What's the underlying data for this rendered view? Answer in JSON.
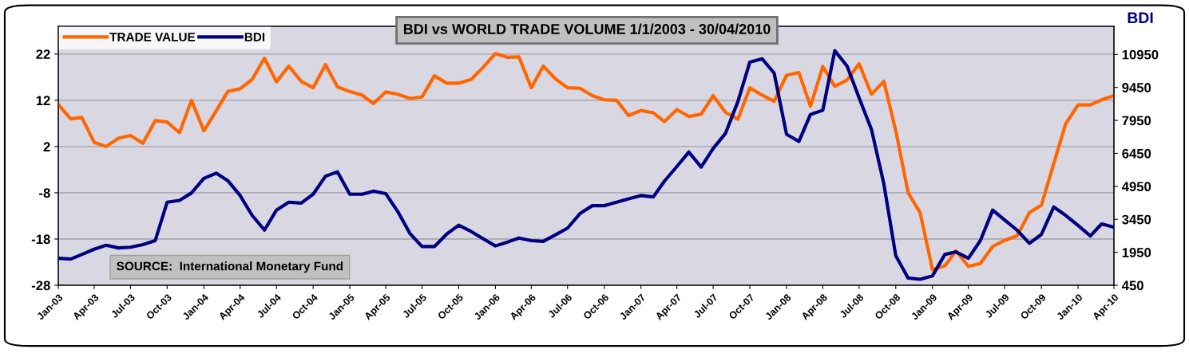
{
  "chart_data": {
    "type": "line",
    "title": "BDI vs WORLD TRADE VOLUME 1/1/2003 - 30/04/2010",
    "y2label": "BDI",
    "annotations": [
      "SOURCE:  International Monetary Fund"
    ],
    "x": [
      "2003-01",
      "2003-02",
      "2003-03",
      "2003-04",
      "2003-05",
      "2003-06",
      "2003-07",
      "2003-08",
      "2003-09",
      "2003-10",
      "2003-11",
      "2003-12",
      "2004-01",
      "2004-02",
      "2004-03",
      "2004-04",
      "2004-05",
      "2004-06",
      "2004-07",
      "2004-08",
      "2004-09",
      "2004-10",
      "2004-11",
      "2004-12",
      "2005-01",
      "2005-02",
      "2005-03",
      "2005-04",
      "2005-05",
      "2005-06",
      "2005-07",
      "2005-08",
      "2005-09",
      "2005-10",
      "2005-11",
      "2005-12",
      "2006-01",
      "2006-02",
      "2006-03",
      "2006-04",
      "2006-05",
      "2006-06",
      "2006-07",
      "2006-08",
      "2006-09",
      "2006-10",
      "2006-11",
      "2006-12",
      "2007-01",
      "2007-02",
      "2007-03",
      "2007-04",
      "2007-05",
      "2007-06",
      "2007-07",
      "2007-08",
      "2007-09",
      "2007-10",
      "2007-11",
      "2007-12",
      "2008-01",
      "2008-02",
      "2008-03",
      "2008-04",
      "2008-05",
      "2008-06",
      "2008-07",
      "2008-08",
      "2008-09",
      "2008-10",
      "2008-11",
      "2008-12",
      "2009-01",
      "2009-02",
      "2009-03",
      "2009-04",
      "2009-05",
      "2009-06",
      "2009-07",
      "2009-08",
      "2009-09",
      "2009-10",
      "2009-11",
      "2009-12",
      "2010-01",
      "2010-02",
      "2010-03",
      "2010-04"
    ],
    "series": [
      {
        "name": "TRADE VALUE",
        "color": "#ff6600",
        "values": [
          11.1,
          8.0,
          8.3,
          2.9,
          2.0,
          3.8,
          4.4,
          2.7,
          7.6,
          7.3,
          5.0,
          12.0,
          5.4,
          9.7,
          13.9,
          14.5,
          16.5,
          21.1,
          16.0,
          19.4,
          16.1,
          14.7,
          19.7,
          14.9,
          13.9,
          13.1,
          11.3,
          13.8,
          13.3,
          12.4,
          12.7,
          17.3,
          15.7,
          15.7,
          16.5,
          19.1,
          22.1,
          21.3,
          21.4,
          14.7,
          19.4,
          16.6,
          14.7,
          14.6,
          13.0,
          12.1,
          12.0,
          8.7,
          9.8,
          9.3,
          7.4,
          10.0,
          8.5,
          9.0,
          13.0,
          9.4,
          7.9,
          14.7,
          13.1,
          11.8,
          17.4,
          18.0,
          10.7,
          19.3,
          15.0,
          16.4,
          19.9,
          13.3,
          16.1,
          5.4,
          -8.0,
          -12.3,
          -24.6,
          -23.8,
          -20.6,
          -23.9,
          -23.3,
          -19.6,
          -18.3,
          -17.3,
          -12.3,
          -10.7,
          -1.7,
          6.9,
          11.0,
          11.0,
          12.1,
          13.0
        ]
      },
      {
        "name": "BDI",
        "color": "#000080",
        "axis": "y2",
        "values": [
          1680,
          1640,
          1850,
          2090,
          2270,
          2150,
          2180,
          2300,
          2480,
          4230,
          4310,
          4650,
          5310,
          5550,
          5210,
          4530,
          3630,
          2960,
          3870,
          4230,
          4190,
          4590,
          5410,
          5610,
          4590,
          4590,
          4730,
          4620,
          3810,
          2800,
          2210,
          2210,
          2780,
          3180,
          2900,
          2570,
          2240,
          2420,
          2600,
          2480,
          2450,
          2750,
          3050,
          3710,
          4070,
          4070,
          4230,
          4380,
          4530,
          4470,
          5190,
          5850,
          6510,
          5830,
          6670,
          7360,
          8800,
          10600,
          10750,
          10100,
          7320,
          6990,
          8220,
          8410,
          11120,
          10420,
          8980,
          7540,
          5070,
          1790,
          780,
          720,
          880,
          1850,
          1970,
          1680,
          2480,
          3870,
          3420,
          2960,
          2360,
          2760,
          4010,
          3630,
          3170,
          2690,
          3240,
          3090
        ]
      }
    ],
    "xlim": [
      "2003-01",
      "2010-04"
    ],
    "xticks": [
      {
        "value": "2003-01",
        "label": "Jan-03"
      },
      {
        "value": "2003-04",
        "label": "Apr-03"
      },
      {
        "value": "2003-07",
        "label": "Jul-03"
      },
      {
        "value": "2003-10",
        "label": "Oct-03"
      },
      {
        "value": "2004-01",
        "label": "Jan-04"
      },
      {
        "value": "2004-04",
        "label": "Apr-04"
      },
      {
        "value": "2004-07",
        "label": "Jul-04"
      },
      {
        "value": "2004-10",
        "label": "Oct-04"
      },
      {
        "value": "2005-01",
        "label": "Jan-05"
      },
      {
        "value": "2005-04",
        "label": "Apr-05"
      },
      {
        "value": "2005-07",
        "label": "Jul-05"
      },
      {
        "value": "2005-10",
        "label": "Oct-05"
      },
      {
        "value": "2006-01",
        "label": "Jan-06"
      },
      {
        "value": "2006-04",
        "label": "Apr-06"
      },
      {
        "value": "2006-07",
        "label": "Jul-06"
      },
      {
        "value": "2006-10",
        "label": "Oct-06"
      },
      {
        "value": "2007-01",
        "label": "Jan-07"
      },
      {
        "value": "2007-04",
        "label": "Apr-07"
      },
      {
        "value": "2007-07",
        "label": "Jul-07"
      },
      {
        "value": "2007-10",
        "label": "Oct-07"
      },
      {
        "value": "2008-01",
        "label": "Jan-08"
      },
      {
        "value": "2008-04",
        "label": "Apr-08"
      },
      {
        "value": "2008-07",
        "label": "Jul-08"
      },
      {
        "value": "2008-10",
        "label": "Oct-08"
      },
      {
        "value": "2009-01",
        "label": "Jan-09"
      },
      {
        "value": "2009-04",
        "label": "Apr-09"
      },
      {
        "value": "2009-07",
        "label": "Jul-09"
      },
      {
        "value": "2009-10",
        "label": "Oct-09"
      },
      {
        "value": "2010-01",
        "label": "Jan-10"
      },
      {
        "value": "2010-04",
        "label": "Apr-10"
      }
    ],
    "ylim": [
      -28,
      28
    ],
    "yticks": [
      -28,
      -18,
      -8,
      2,
      12,
      22
    ],
    "y2lim": [
      450,
      12230
    ],
    "y2ticks": [
      450,
      1950,
      3450,
      4950,
      6450,
      7950,
      9450,
      10950
    ],
    "grid": "y",
    "legend": "top left",
    "marker": "none",
    "line_style": "solid"
  }
}
